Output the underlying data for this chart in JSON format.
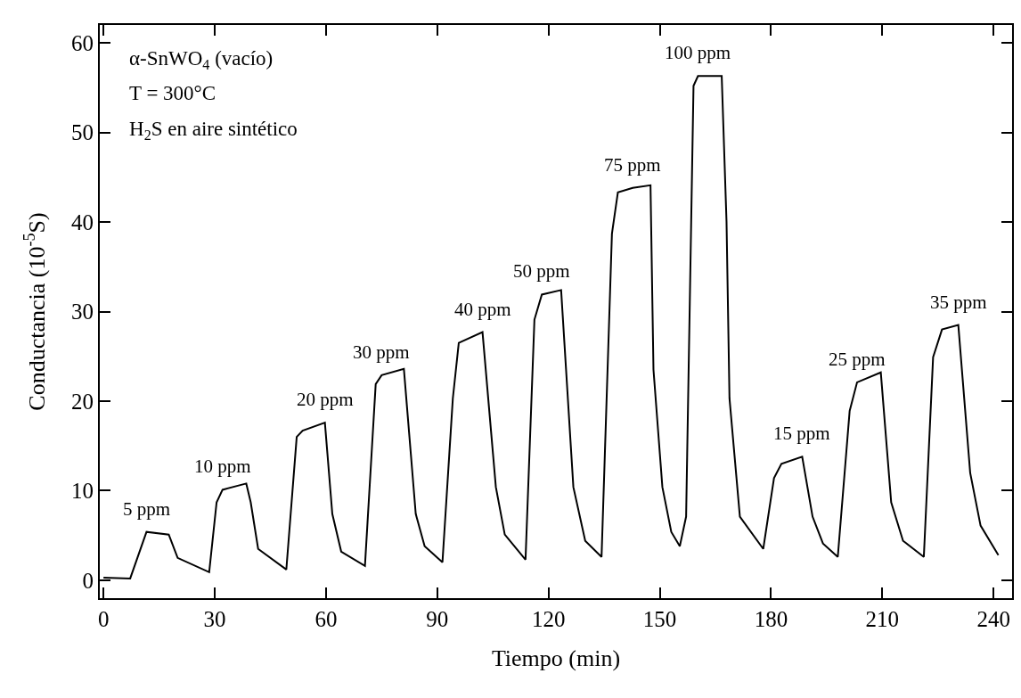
{
  "chart_data": {
    "type": "line",
    "xlabel": "Tiempo (min)",
    "ylabel": "Conductancia (10$^{-5}$S)",
    "xlim": [
      -1,
      245
    ],
    "ylim": [
      -2,
      62
    ],
    "xticks": [
      0,
      30,
      60,
      90,
      120,
      150,
      180,
      210,
      240
    ],
    "yticks": [
      0,
      10,
      20,
      30,
      40,
      50,
      60
    ],
    "grid": false,
    "marker": "none",
    "line_style": "solid",
    "series": [
      {
        "color": "#000000",
        "x": [
          0,
          7.2,
          11.6,
          17.6,
          20.0,
          28.5,
          30.5,
          32.1,
          38.5,
          39.7,
          41.7,
          49.3,
          52.1,
          53.7,
          59.7,
          61.7,
          64.1,
          70.5,
          73.4,
          75.0,
          81.0,
          84.2,
          86.6,
          91.4,
          94.2,
          95.8,
          102.2,
          105.8,
          108.2,
          113.8,
          116.2,
          118.2,
          123.4,
          126.7,
          129.9,
          134.3,
          137.1,
          138.7,
          142.7,
          147.5,
          148.3,
          150.7,
          153.1,
          155.4,
          157.1,
          159.1,
          160.3,
          166.7,
          168.0,
          168.8,
          171.6,
          177.9,
          180.8,
          182.8,
          188.4,
          191.2,
          194.0,
          198.0,
          201.2,
          203.2,
          209.6,
          212.4,
          215.6,
          221.2,
          223.7,
          226.1,
          230.5,
          233.7,
          236.5,
          241.3
        ],
        "values": [
          0.3,
          0.2,
          5.4,
          5.1,
          2.5,
          0.9,
          8.7,
          10.1,
          10.8,
          8.7,
          3.5,
          1.2,
          16.0,
          16.7,
          17.6,
          7.4,
          3.2,
          1.6,
          21.9,
          22.9,
          23.6,
          7.4,
          3.8,
          2.0,
          20.3,
          26.5,
          27.7,
          10.4,
          5.1,
          2.3,
          29.1,
          31.9,
          32.4,
          10.4,
          4.4,
          2.6,
          38.7,
          43.3,
          43.8,
          44.1,
          23.5,
          10.4,
          5.4,
          3.8,
          7.1,
          55.2,
          56.3,
          56.3,
          40.0,
          20.3,
          7.1,
          3.5,
          11.4,
          13.0,
          13.8,
          7.1,
          4.1,
          2.6,
          18.9,
          22.1,
          23.2,
          8.7,
          4.4,
          2.6,
          24.9,
          28.0,
          28.5,
          12.0,
          6.1,
          2.8
        ]
      }
    ],
    "annotations": [
      "α-SnWO$_{4}$ (vacío)",
      "T = 300°C",
      "H$_{2}$S en aire sintético",
      {
        "text": "5 ppm",
        "x": 11.6,
        "y": 5.4
      },
      {
        "text": "10 ppm",
        "x": 32.1,
        "y": 10.1
      },
      {
        "text": "20 ppm",
        "x": 59.7,
        "y": 17.6
      },
      {
        "text": "30 ppm",
        "x": 75.0,
        "y": 22.9
      },
      {
        "text": "40 ppm",
        "x": 102.2,
        "y": 27.7
      },
      {
        "text": "50 ppm",
        "x": 118.2,
        "y": 31.9
      },
      {
        "text": "75 ppm",
        "x": 142.7,
        "y": 43.8
      },
      {
        "text": "100 ppm",
        "x": 160.3,
        "y": 56.3
      },
      {
        "text": "15 ppm",
        "x": 188.4,
        "y": 13.8
      },
      {
        "text": "25 ppm",
        "x": 203.2,
        "y": 22.1
      },
      {
        "text": "35 ppm",
        "x": 230.5,
        "y": 28.5
      }
    ]
  }
}
